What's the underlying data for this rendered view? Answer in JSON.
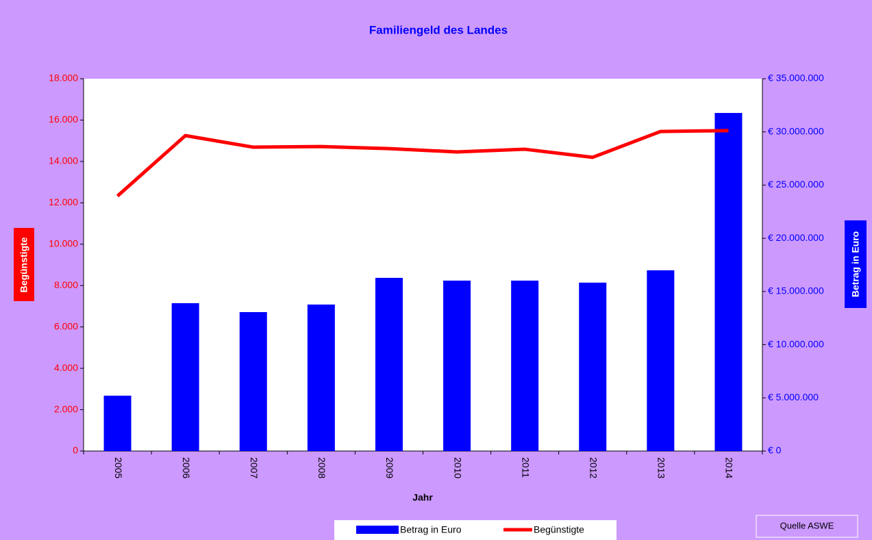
{
  "chart_data": {
    "type": "bar",
    "title": "Familiengeld des Landes",
    "x_label": "Jahr",
    "y_label": "Begünstigte",
    "y2_label": "Betrag in Euro",
    "annotation": "Quelle ASWE",
    "categories": [
      "2005",
      "2006",
      "2007",
      "2008",
      "2009",
      "2010",
      "2011",
      "2012",
      "2013",
      "2014"
    ],
    "series": [
      {
        "name": "Betrag in Euro",
        "type": "bar",
        "color": "#0000ff",
        "axis": "y2",
        "values": [
          5200000,
          13900000,
          13060000,
          13770000,
          16280000,
          16020000,
          16020000,
          15830000,
          16990000,
          31780000
        ]
      },
      {
        "name": "Begünstigte",
        "type": "line",
        "color": "#ff0000",
        "axis": "y",
        "values": [
          12330,
          15250,
          14690,
          14720,
          14620,
          14460,
          14590,
          14200,
          15450,
          15490
        ]
      }
    ],
    "ylim": [
      0,
      18000
    ],
    "yticks": [
      0,
      {
        "value": 2000,
        "label": "2.000"
      },
      {
        "value": 4000,
        "label": "4.000"
      },
      {
        "value": 6000,
        "label": "6.000"
      },
      {
        "value": 8000,
        "label": "8.000"
      },
      {
        "value": 10000,
        "label": "10.000"
      },
      {
        "value": 12000,
        "label": "12.000"
      },
      {
        "value": 14000,
        "label": "14.000"
      },
      {
        "value": 16000,
        "label": "16.000"
      },
      {
        "value": 18000,
        "label": "18.000"
      }
    ],
    "y2lim": [
      0,
      35000000
    ],
    "y2ticks": [
      {
        "value": 0,
        "label": "€ 0"
      },
      {
        "value": 5000000,
        "label": "€ 5.000.000"
      },
      {
        "value": 10000000,
        "label": "€ 10.000.000"
      },
      {
        "value": 15000000,
        "label": "€ 15.000.000"
      },
      {
        "value": 20000000,
        "label": "€ 20.000.000"
      },
      {
        "value": 25000000,
        "label": "€ 25.000.000"
      },
      {
        "value": 30000000,
        "label": "€ 30.000.000"
      },
      {
        "value": 35000000,
        "label": "€ 35.000.000"
      }
    ],
    "grid": false,
    "legend": "bottom"
  }
}
